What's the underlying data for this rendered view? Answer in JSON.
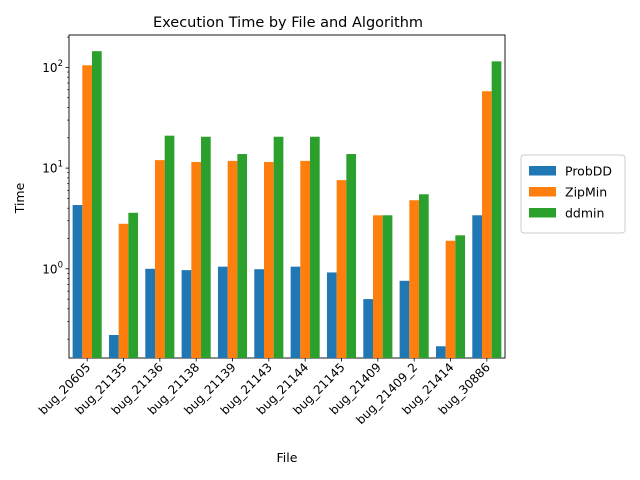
{
  "chart_data": {
    "type": "bar",
    "title": "Execution Time by File and Algorithm",
    "xlabel": "File",
    "ylabel": "Time",
    "yscale": "log",
    "ylim": [
      0.13,
      210
    ],
    "yticks": [
      {
        "value": 1,
        "base": "10",
        "exp": "0"
      },
      {
        "value": 10,
        "base": "10",
        "exp": "1"
      },
      {
        "value": 100,
        "base": "10",
        "exp": "2"
      }
    ],
    "categories": [
      "bug_20605",
      "bug_21135",
      "bug_21136",
      "bug_21138",
      "bug_21139",
      "bug_21143",
      "bug_21144",
      "bug_21145",
      "bug_21409",
      "bug_21409_2",
      "bug_21414",
      "bug_30886"
    ],
    "series": [
      {
        "name": "ProbDD",
        "color": "#1f77b4",
        "values": [
          4.3,
          0.22,
          1.0,
          0.97,
          1.05,
          0.99,
          1.05,
          0.92,
          0.5,
          0.76,
          0.17,
          3.4
        ]
      },
      {
        "name": "ZipMin",
        "color": "#ff7f0e",
        "values": [
          105,
          2.8,
          12.0,
          11.5,
          11.8,
          11.5,
          11.8,
          7.6,
          3.4,
          4.8,
          1.9,
          58
        ]
      },
      {
        "name": "ddmin",
        "color": "#2ca02c",
        "values": [
          145,
          3.6,
          21.0,
          20.5,
          13.8,
          20.5,
          20.5,
          13.8,
          3.4,
          5.5,
          2.15,
          115
        ]
      }
    ],
    "legend": "right"
  }
}
